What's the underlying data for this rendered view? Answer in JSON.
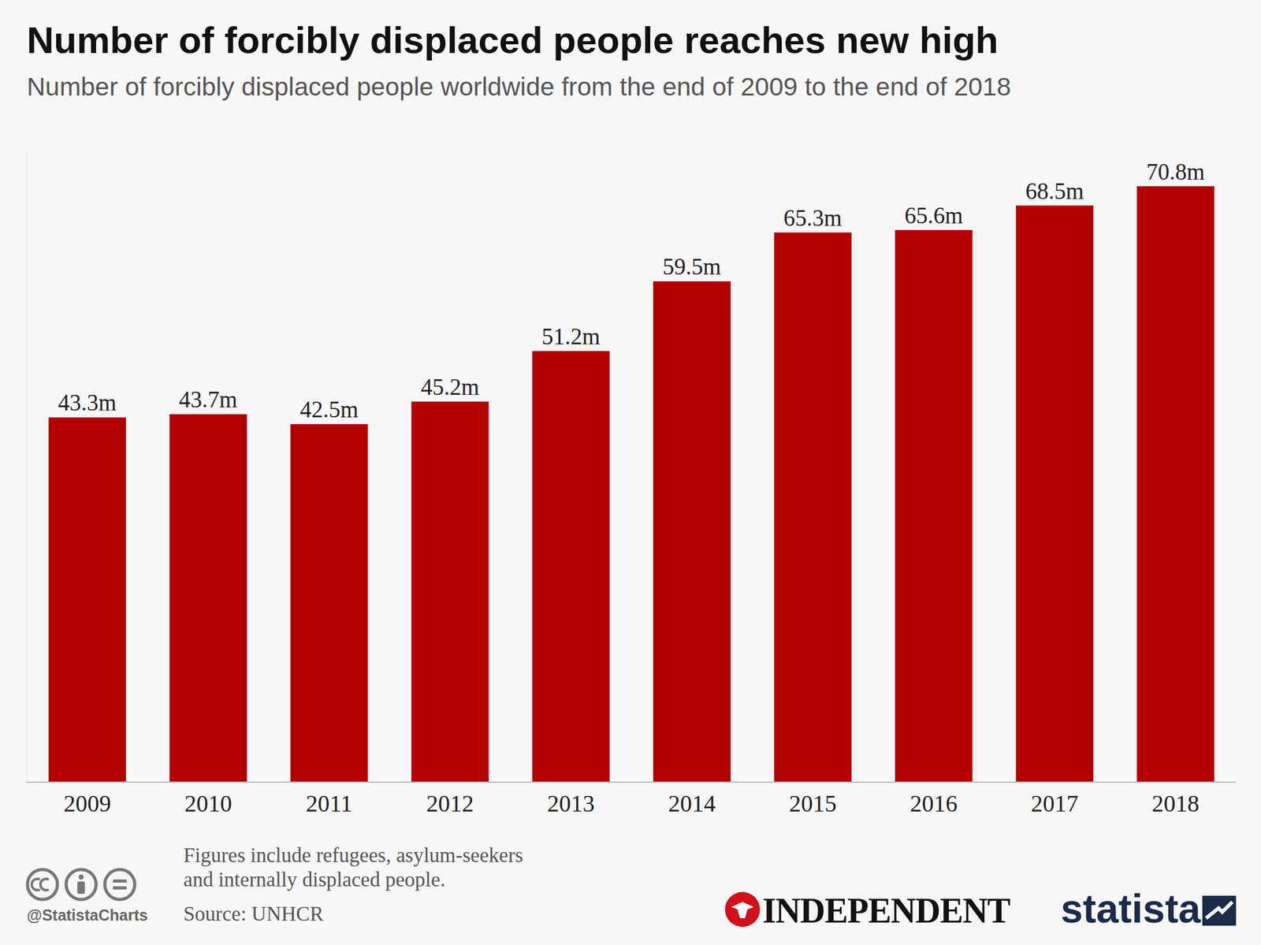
{
  "chart_data": {
    "type": "bar",
    "title": "Number of forcibly displaced people reaches new high",
    "subtitle": "Number of forcibly displaced people worldwide from the end of 2009 to the end of 2018",
    "categories": [
      "2009",
      "2010",
      "2011",
      "2012",
      "2013",
      "2014",
      "2015",
      "2016",
      "2017",
      "2018"
    ],
    "values": [
      43.3,
      43.7,
      42.5,
      45.2,
      51.2,
      59.5,
      65.3,
      65.6,
      68.5,
      70.8
    ],
    "value_labels": [
      "43.3m",
      "43.7m",
      "42.5m",
      "45.2m",
      "51.2m",
      "59.5m",
      "65.3m",
      "65.6m",
      "68.5m",
      "70.8m"
    ],
    "color": "#b30000",
    "ylim": [
      0,
      75
    ],
    "data_labels": true,
    "tick_labels": "x",
    "grid": false,
    "note": [
      "Figures include refugees, asylum-seekers",
      "and internally displaced people."
    ],
    "source": "Source: UNHCR",
    "credits": [
      "@StatistaCharts",
      "INDEPENDENT",
      "statista"
    ]
  }
}
